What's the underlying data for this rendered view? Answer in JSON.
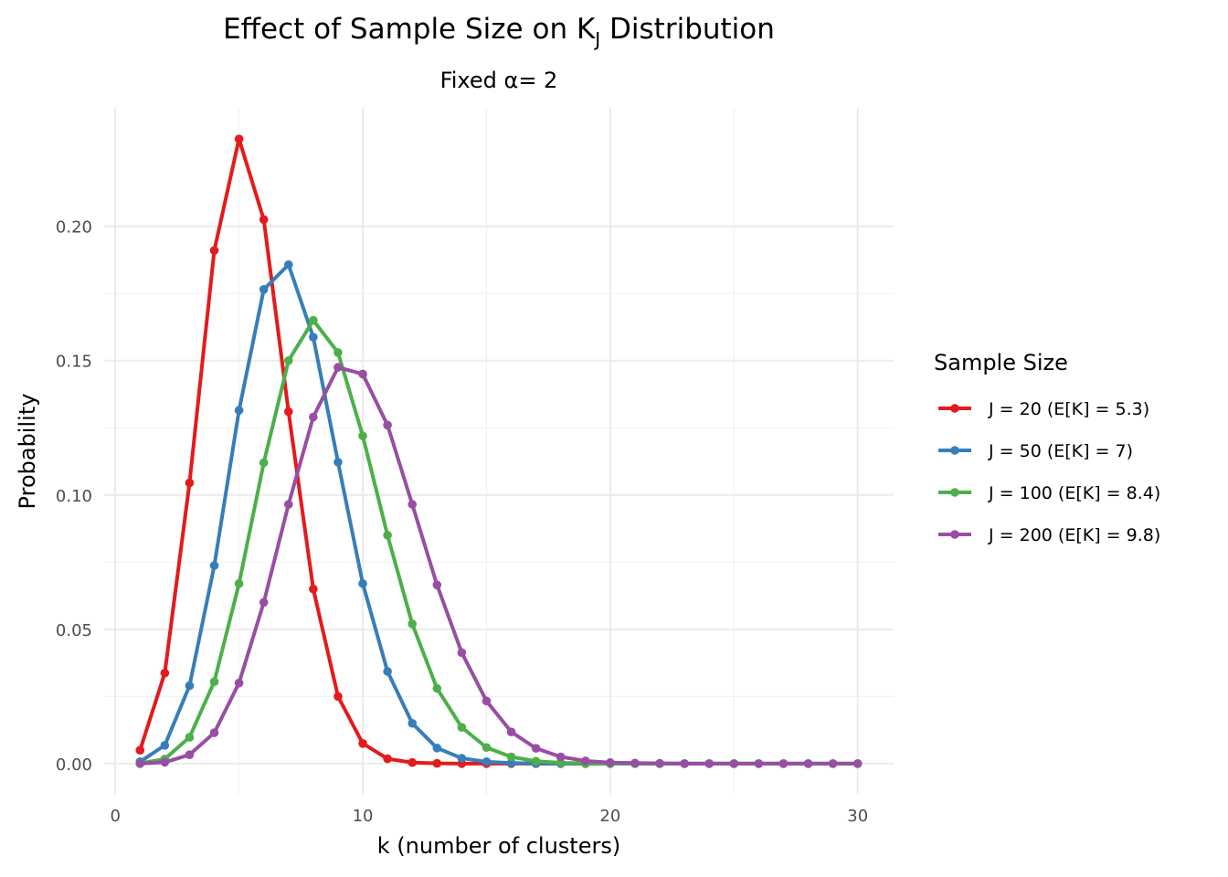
{
  "chart_data": {
    "type": "line",
    "title": [
      "Effect of Sample Size on K",
      "J",
      " Distribution"
    ],
    "subtitle": "Fixed α= 2",
    "x_label": "k (number of clusters)",
    "y_label": "Probability",
    "legend_title": "Sample Size",
    "legend_position": "right",
    "grid": true,
    "x": [
      1,
      2,
      3,
      4,
      5,
      6,
      7,
      8,
      9,
      10,
      11,
      12,
      13,
      14,
      15,
      16,
      17,
      18,
      19,
      20,
      21,
      22,
      23,
      24,
      25,
      26,
      27,
      28,
      29,
      30
    ],
    "series": [
      {
        "name": "J = 20 (E[K] = 5.3)",
        "color": "#e41a1c",
        "values": [
          0.005,
          0.0337,
          0.1045,
          0.191,
          0.2325,
          0.2025,
          0.131,
          0.065,
          0.025,
          0.0075,
          0.0018,
          0.0004,
          0.0001,
          1e-05,
          0,
          0,
          0,
          0,
          0,
          0,
          null,
          null,
          null,
          null,
          null,
          null,
          null,
          null,
          null,
          null
        ]
      },
      {
        "name": "J = 50 (E[K] = 7)",
        "color": "#377eb8",
        "values": [
          0.0007,
          0.0068,
          0.029,
          0.0737,
          0.1315,
          0.1765,
          0.1857,
          0.1587,
          0.1122,
          0.067,
          0.0343,
          0.015,
          0.0058,
          0.002,
          0.0007,
          0.0002,
          5e-05,
          0,
          0,
          0,
          0,
          0,
          0,
          0,
          0,
          0,
          0,
          0,
          0,
          0
        ]
      },
      {
        "name": "J = 100 (E[K] = 8.4)",
        "color": "#4daf4a",
        "values": [
          0.0001,
          0.0017,
          0.0098,
          0.0305,
          0.067,
          0.112,
          0.15,
          0.165,
          0.153,
          0.122,
          0.085,
          0.052,
          0.028,
          0.0135,
          0.006,
          0.0025,
          0.0009,
          0.0003,
          0.0001,
          0,
          0,
          0,
          0,
          0,
          0,
          0,
          0,
          0,
          0,
          0
        ]
      },
      {
        "name": "J = 200 (E[K] = 9.8)",
        "color": "#984ea3",
        "values": [
          0,
          0.0005,
          0.0033,
          0.0115,
          0.03,
          0.06,
          0.0965,
          0.129,
          0.1475,
          0.145,
          0.126,
          0.0965,
          0.0665,
          0.0413,
          0.0233,
          0.0118,
          0.0057,
          0.0025,
          0.001,
          0.0004,
          0.0002,
          0.0001,
          0,
          0,
          0,
          0,
          0,
          0,
          0,
          0
        ]
      }
    ],
    "xlim": [
      -0.45,
      31.45
    ],
    "xticks": [
      0,
      10,
      20,
      30
    ],
    "ylim": [
      -0.0116,
      0.2441
    ],
    "yticks": [
      {
        "value": 0,
        "label": "0.00"
      },
      {
        "value": 0.05,
        "label": "0.05"
      },
      {
        "value": 0.1,
        "label": "0.10"
      },
      {
        "value": 0.15,
        "label": "0.15"
      },
      {
        "value": 0.2,
        "label": "0.20"
      }
    ]
  }
}
